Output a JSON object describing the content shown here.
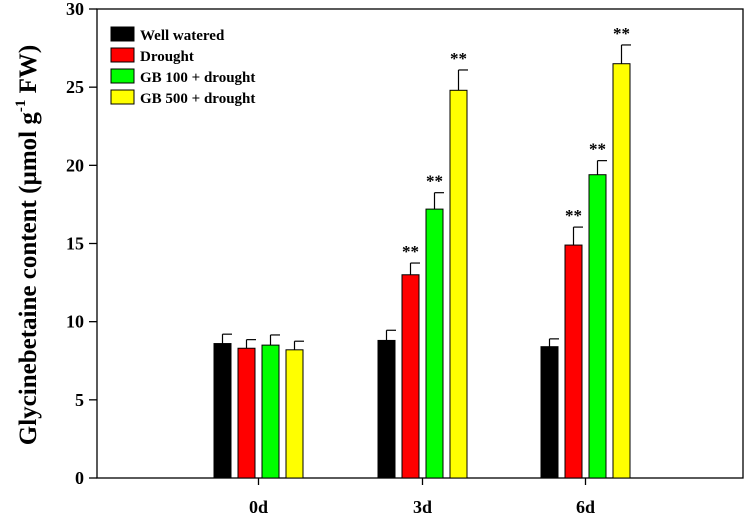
{
  "chart_data": {
    "type": "bar",
    "title": "",
    "xlabel": "",
    "ylabel": "Glycinebetaine content (µmol g",
    "ylabel_sup": "-1",
    "ylabel_tail": " FW)",
    "ylim": [
      0,
      30
    ],
    "yticks": [
      0,
      5,
      10,
      15,
      20,
      25,
      30
    ],
    "ytick_labels": [
      "0",
      "5",
      "10",
      "15",
      "20",
      "25",
      "30"
    ],
    "categories": [
      "0d",
      "3d",
      "6d"
    ],
    "legend_position": "top-left",
    "significance_label": "**",
    "series": [
      {
        "name": "Well watered",
        "color": "#000000",
        "values": [
          8.6,
          8.8,
          8.4
        ],
        "errors": [
          0.6,
          0.65,
          0.5
        ],
        "sig": [
          false,
          false,
          false
        ]
      },
      {
        "name": "Drought",
        "color": "#ff0000",
        "values": [
          8.3,
          13.0,
          14.9
        ],
        "errors": [
          0.55,
          0.75,
          1.15
        ],
        "sig": [
          false,
          true,
          true
        ]
      },
      {
        "name": "GB 100 + drought",
        "color": "#00ff00",
        "values": [
          8.5,
          17.2,
          19.4
        ],
        "errors": [
          0.65,
          1.05,
          0.9
        ],
        "sig": [
          false,
          true,
          true
        ]
      },
      {
        "name": "GB 500 + drought",
        "color": "#ffff00",
        "values": [
          8.2,
          24.8,
          26.5
        ],
        "errors": [
          0.55,
          1.3,
          1.2
        ],
        "sig": [
          false,
          true,
          true
        ]
      }
    ]
  }
}
